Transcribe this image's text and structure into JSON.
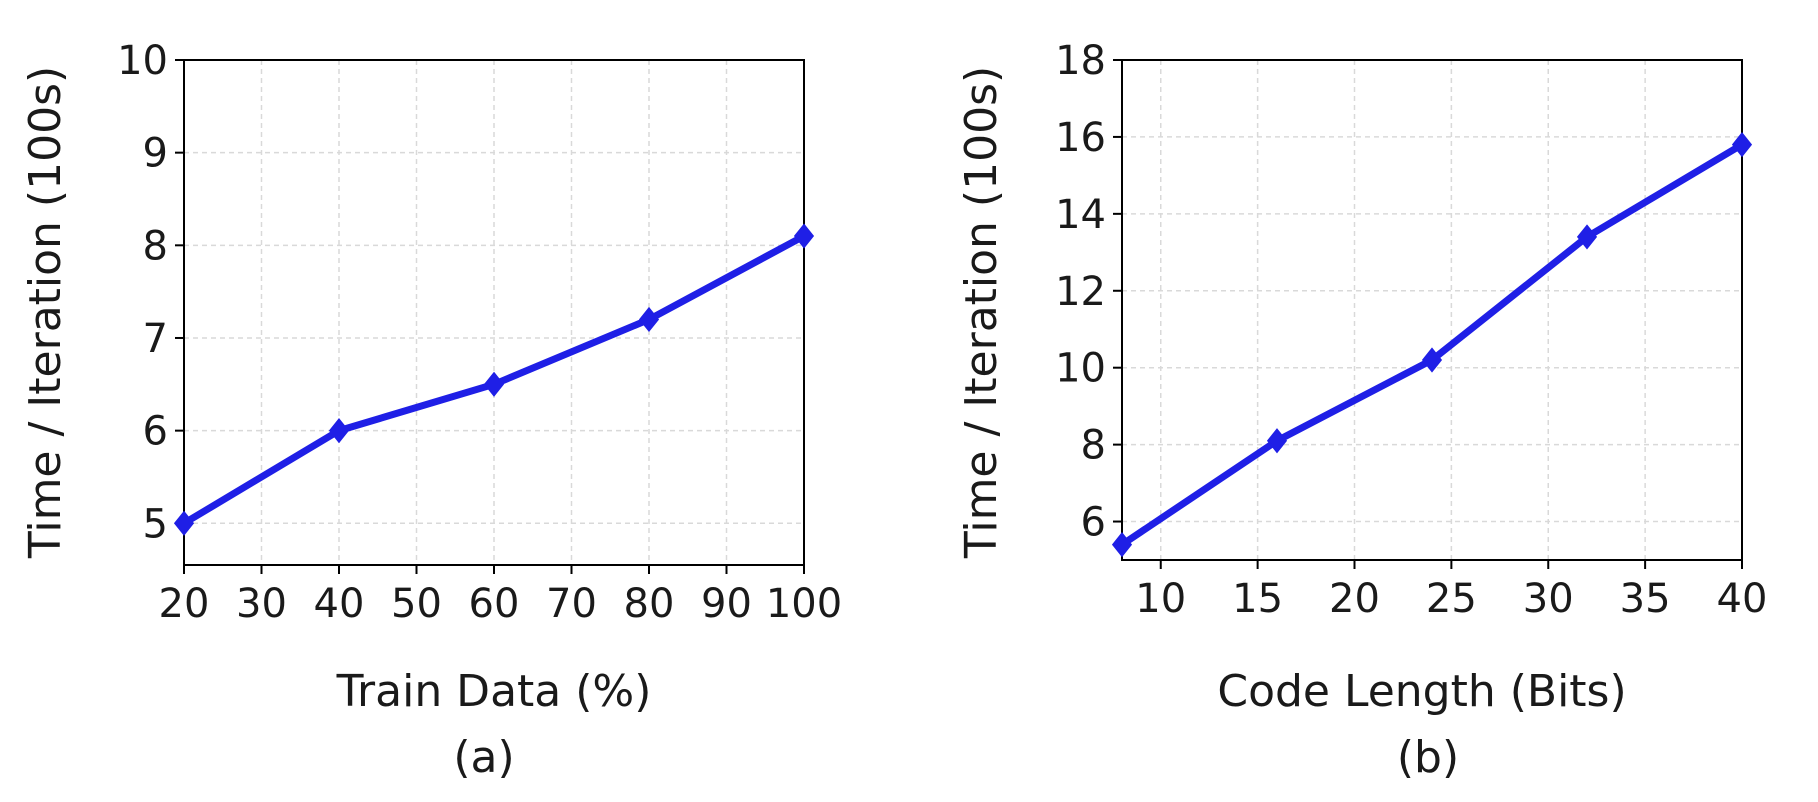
{
  "chart_data": [
    {
      "type": "line",
      "caption": "(a)",
      "xlabel": "Train Data (%)",
      "ylabel": "Time / Iteration (100s)",
      "xlim": [
        20,
        100
      ],
      "ylim": [
        4.55,
        10
      ],
      "xticks": [
        20,
        30,
        40,
        50,
        60,
        70,
        80,
        90,
        100
      ],
      "yticks": [
        5,
        6,
        7,
        8,
        9,
        10
      ],
      "grid": true,
      "color": "#1f1fe6",
      "marker": "diamond",
      "series": [
        {
          "x": [
            20,
            40,
            60,
            80,
            100
          ],
          "values": [
            5.0,
            6.0,
            6.5,
            7.2,
            8.1
          ]
        }
      ]
    },
    {
      "type": "line",
      "caption": "(b)",
      "xlabel": "Code Length (Bits)",
      "ylabel": "Time / Iteration (100s)",
      "xlim": [
        8,
        40
      ],
      "ylim": [
        5,
        18
      ],
      "xticks": [
        10,
        15,
        20,
        25,
        30,
        35,
        40
      ],
      "yticks": [
        6,
        8,
        10,
        12,
        14,
        16,
        18
      ],
      "grid": true,
      "color": "#1f1fe6",
      "marker": "diamond",
      "series": [
        {
          "x": [
            8,
            16,
            24,
            32,
            40
          ],
          "values": [
            5.4,
            8.1,
            10.2,
            13.4,
            15.8
          ]
        }
      ]
    }
  ]
}
